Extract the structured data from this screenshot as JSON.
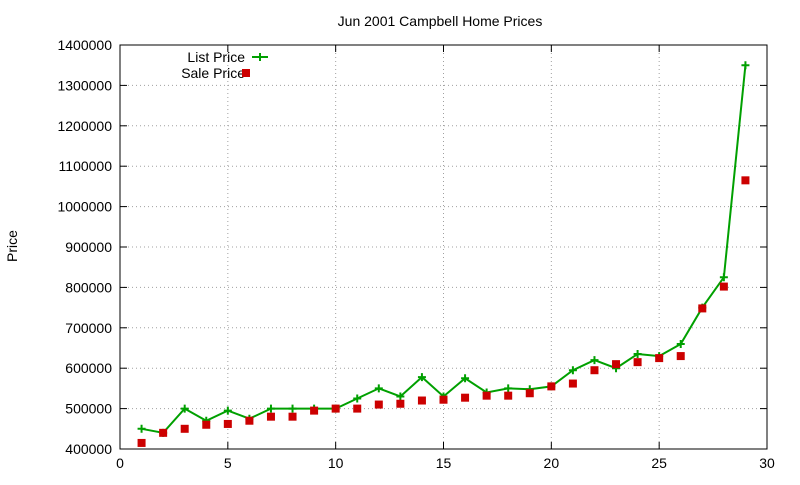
{
  "chart_data": {
    "type": "line",
    "title": "Jun 2001 Campbell Home Prices",
    "xlabel": "",
    "ylabel": "Price",
    "xlim": [
      0,
      30
    ],
    "ylim": [
      400000,
      1400000
    ],
    "xticks": [
      0,
      5,
      10,
      15,
      20,
      25,
      30
    ],
    "yticks": [
      400000,
      500000,
      600000,
      700000,
      800000,
      900000,
      1000000,
      1100000,
      1200000,
      1300000,
      1400000
    ],
    "grid": true,
    "legend_position": "top-left",
    "x": [
      1,
      2,
      3,
      4,
      5,
      6,
      7,
      8,
      9,
      10,
      11,
      12,
      13,
      14,
      15,
      16,
      17,
      18,
      19,
      20,
      21,
      22,
      23,
      24,
      25,
      26,
      27,
      28,
      29
    ],
    "series": [
      {
        "name": "List Price",
        "style": "line-with-plus-markers",
        "color": "#00a000",
        "values": [
          450000,
          440000,
          500000,
          470000,
          495000,
          475000,
          500000,
          500000,
          500000,
          500000,
          525000,
          550000,
          530000,
          578000,
          530000,
          575000,
          540000,
          550000,
          548000,
          555000,
          595000,
          620000,
          600000,
          635000,
          630000,
          660000,
          750000,
          825000,
          1350000
        ]
      },
      {
        "name": "Sale Price",
        "style": "square-markers",
        "color": "#cc0000",
        "values": [
          415000,
          440000,
          450000,
          460000,
          462000,
          470000,
          480000,
          480000,
          495000,
          500000,
          500000,
          510000,
          512000,
          520000,
          522000,
          527000,
          532000,
          532000,
          538000,
          555000,
          562000,
          595000,
          610000,
          615000,
          625000,
          630000,
          748000,
          802000,
          1065000
        ]
      }
    ]
  }
}
